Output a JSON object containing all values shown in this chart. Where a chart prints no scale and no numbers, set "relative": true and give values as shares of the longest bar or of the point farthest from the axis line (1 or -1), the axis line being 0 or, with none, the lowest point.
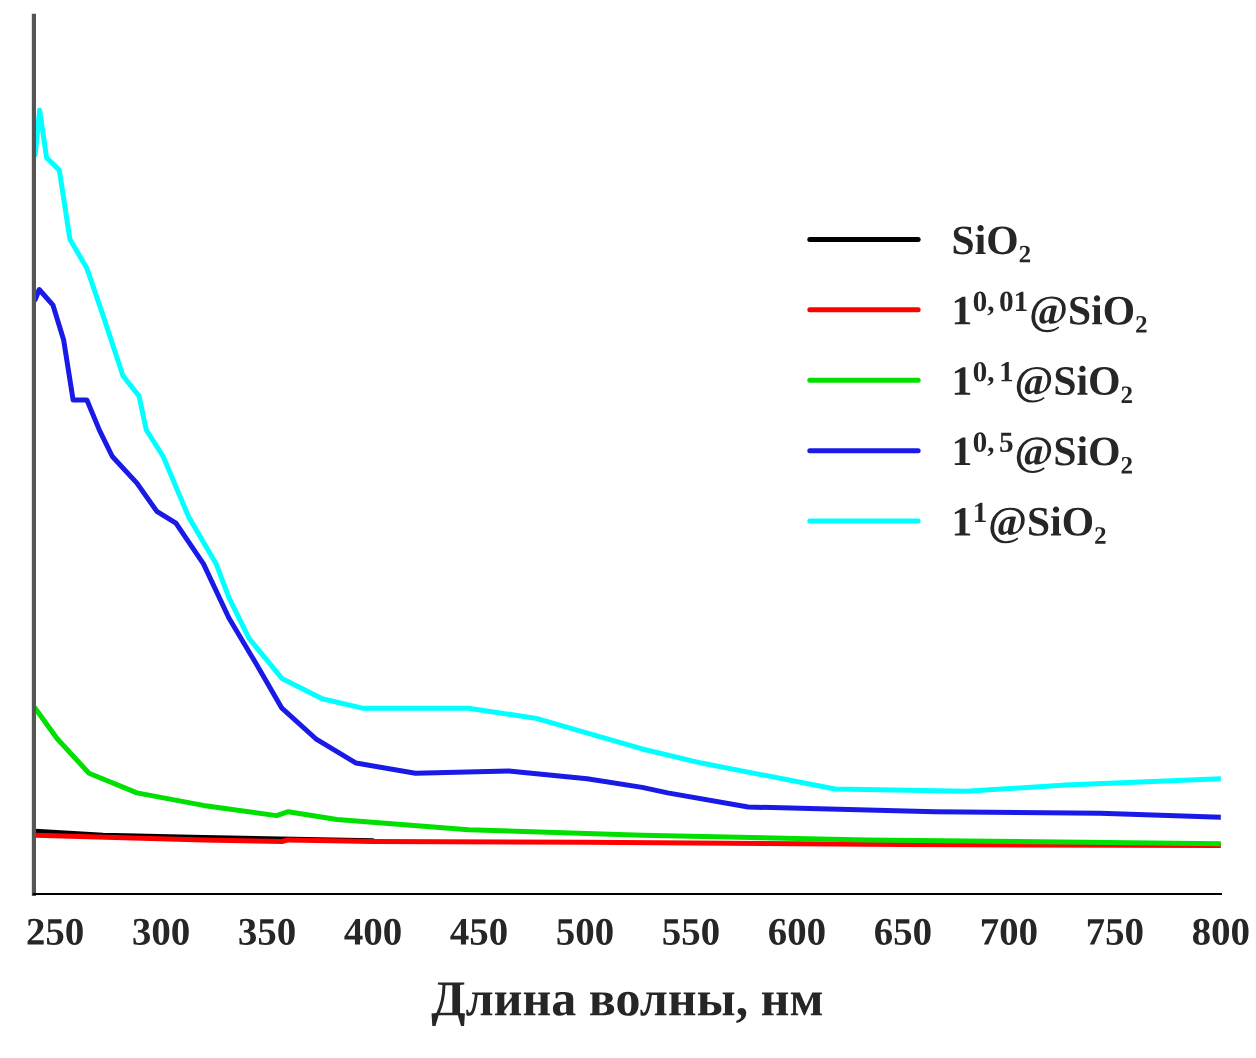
{
  "chart_data": {
    "type": "line",
    "xlabel": "Длина волны, нм",
    "relative": true,
    "xlim": [
      240,
      800
    ],
    "xticks": [
      250,
      300,
      350,
      400,
      450,
      500,
      550,
      600,
      650,
      700,
      750,
      800
    ],
    "legend": "right",
    "grid": false,
    "series": [
      {
        "name": "SiO₂",
        "color": "#000000",
        "x": [
          240.6,
          272.6,
          320,
          400
        ],
        "values": [
          0.08,
          0.075,
          0.072,
          0.068
        ]
      },
      {
        "name": "1$^{0,01}$@SiO₂",
        "color": "#ff0000",
        "x": [
          240.6,
          320,
          357,
          360,
          400,
          500,
          650,
          800
        ],
        "values": [
          0.075,
          0.069,
          0.067,
          0.069,
          0.067,
          0.066,
          0.063,
          0.062
        ]
      },
      {
        "name": "1$^{0,1}$@SiO₂",
        "color": "#00e000",
        "x": [
          240.6,
          251,
          266,
          288.6,
          320,
          354.5,
          360,
          383,
          445,
          527,
          633,
          800
        ],
        "values": [
          0.237,
          0.198,
          0.154,
          0.129,
          0.113,
          0.1,
          0.105,
          0.095,
          0.082,
          0.075,
          0.069,
          0.064
        ]
      },
      {
        "name": "1$^{0,5}$@SiO₂",
        "color": "#1a1ae6",
        "x": [
          240.6,
          242.5,
          249,
          254,
          258.5,
          265,
          271,
          277,
          288.6,
          298,
          307,
          320,
          332,
          345,
          357,
          373,
          392,
          420,
          464,
          501,
          527,
          539,
          577,
          665,
          743,
          800
        ],
        "values": [
          0.758,
          0.771,
          0.751,
          0.707,
          0.63,
          0.63,
          0.591,
          0.558,
          0.524,
          0.488,
          0.473,
          0.421,
          0.352,
          0.293,
          0.237,
          0.198,
          0.167,
          0.154,
          0.157,
          0.147,
          0.136,
          0.129,
          0.111,
          0.105,
          0.103,
          0.098
        ]
      },
      {
        "name": "1$^{1}$@SiO₂",
        "color": "#00ffff",
        "x": [
          240.6,
          242.7,
          246,
          252,
          257,
          265,
          272.6,
          282,
          289.6,
          293,
          301,
          313,
          326,
          332,
          341.5,
          357,
          376,
          395,
          445,
          477,
          527,
          555,
          618,
          680,
          727,
          800
        ],
        "values": [
          0.943,
          1.0,
          0.939,
          0.923,
          0.835,
          0.798,
          0.738,
          0.661,
          0.635,
          0.592,
          0.558,
          0.481,
          0.421,
          0.378,
          0.326,
          0.275,
          0.249,
          0.237,
          0.237,
          0.224,
          0.185,
          0.167,
          0.134,
          0.131,
          0.139,
          0.147
        ]
      }
    ]
  }
}
